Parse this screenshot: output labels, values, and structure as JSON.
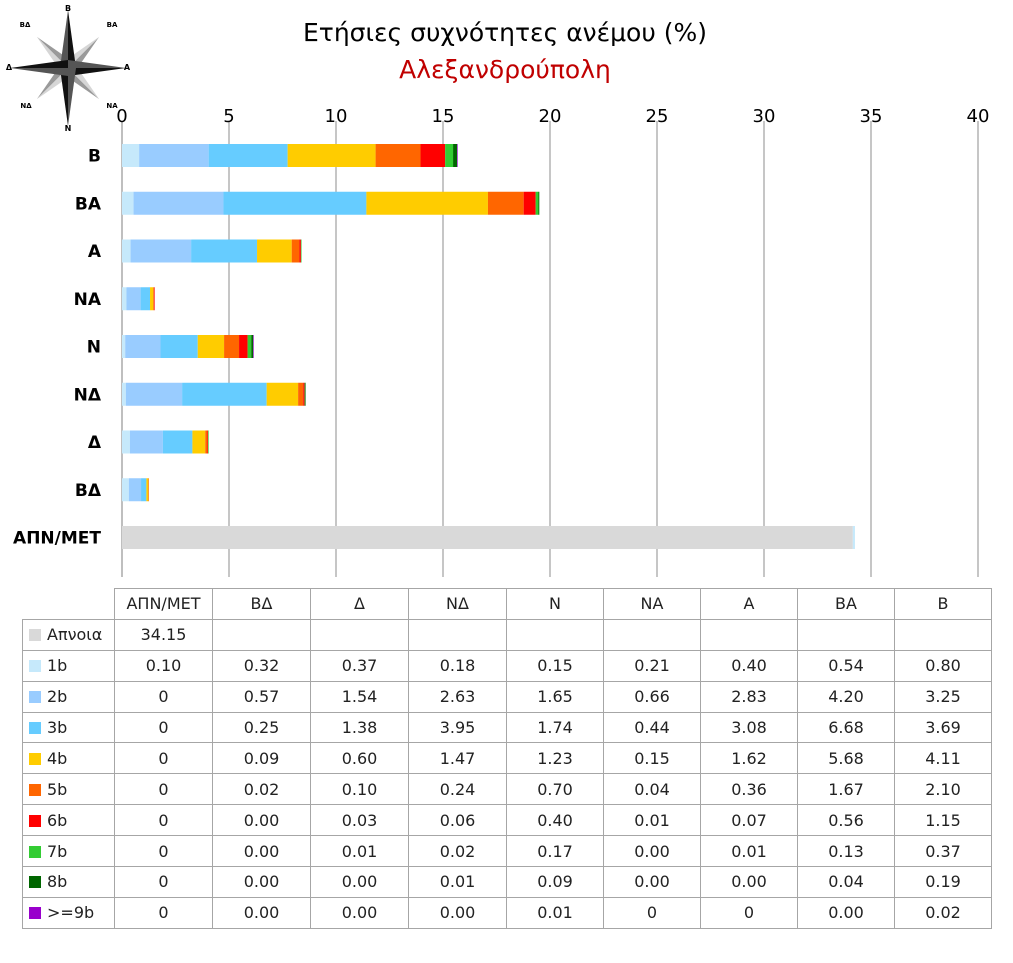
{
  "title": "Ετήσιες συχνότητες ανέμου (%)",
  "subtitle": "Αλεξανδρούπολη",
  "compass": {
    "icon": "wind-rose-icon",
    "labels": {
      "n": "Β",
      "ne": "ΒΑ",
      "e": "Α",
      "se": "ΝΑ",
      "s": "Ν",
      "sw": "ΝΔ",
      "w": "Δ",
      "nw": "ΒΔ"
    }
  },
  "chart_data": {
    "type": "bar",
    "orientation": "horizontal",
    "stacked": true,
    "title": "Ετήσιες συχνότητες ανέμου (%)",
    "subtitle": "Αλεξανδρούπολη",
    "xlim": [
      0,
      40
    ],
    "x_ticks": [
      0,
      5,
      10,
      15,
      20,
      25,
      30,
      35,
      40
    ],
    "x_axis_position": "top",
    "grid": true,
    "legend_placement": "data-table-bottom",
    "chart_categories": [
      "Β",
      "ΒΑ",
      "Α",
      "ΝΑ",
      "Ν",
      "ΝΔ",
      "Δ",
      "ΒΔ",
      "ΑΠΝ/ΜΕΤ"
    ],
    "categories": [
      "ΑΠΝ/ΜΕΤ",
      "ΒΔ",
      "Δ",
      "ΝΔ",
      "Ν",
      "ΝΑ",
      "Α",
      "ΒΑ",
      "Β"
    ],
    "series": [
      {
        "name": "Απνοια",
        "color": "#d9d9d9",
        "values": [
          34.15,
          null,
          null,
          null,
          null,
          null,
          null,
          null,
          null
        ],
        "labels": [
          "34.15",
          "",
          "",
          "",
          "",
          "",
          "",
          "",
          ""
        ]
      },
      {
        "name": "1b",
        "color": "#c6e9fb",
        "values": [
          0.1,
          0.32,
          0.37,
          0.18,
          0.15,
          0.21,
          0.4,
          0.54,
          0.8
        ],
        "labels": [
          "0.10",
          "0.32",
          "0.37",
          "0.18",
          "0.15",
          "0.21",
          "0.40",
          "0.54",
          "0.80"
        ]
      },
      {
        "name": "2b",
        "color": "#99ccff",
        "values": [
          0,
          0.57,
          1.54,
          2.63,
          1.65,
          0.66,
          2.83,
          4.2,
          3.25
        ],
        "labels": [
          "0",
          "0.57",
          "1.54",
          "2.63",
          "1.65",
          "0.66",
          "2.83",
          "4.20",
          "3.25"
        ]
      },
      {
        "name": "3b",
        "color": "#66ccff",
        "values": [
          0,
          0.25,
          1.38,
          3.95,
          1.74,
          0.44,
          3.08,
          6.68,
          3.69
        ],
        "labels": [
          "0",
          "0.25",
          "1.38",
          "3.95",
          "1.74",
          "0.44",
          "3.08",
          "6.68",
          "3.69"
        ]
      },
      {
        "name": "4b",
        "color": "#ffcc00",
        "values": [
          0,
          0.09,
          0.6,
          1.47,
          1.23,
          0.15,
          1.62,
          5.68,
          4.11
        ],
        "labels": [
          "0",
          "0.09",
          "0.60",
          "1.47",
          "1.23",
          "0.15",
          "1.62",
          "5.68",
          "4.11"
        ]
      },
      {
        "name": "5b",
        "color": "#ff6600",
        "values": [
          0,
          0.02,
          0.1,
          0.24,
          0.7,
          0.04,
          0.36,
          1.67,
          2.1
        ],
        "labels": [
          "0",
          "0.02",
          "0.10",
          "0.24",
          "0.70",
          "0.04",
          "0.36",
          "1.67",
          "2.10"
        ]
      },
      {
        "name": "6b",
        "color": "#ff0000",
        "values": [
          0,
          0.0,
          0.03,
          0.06,
          0.4,
          0.01,
          0.07,
          0.56,
          1.15
        ],
        "labels": [
          "0",
          "0.00",
          "0.03",
          "0.06",
          "0.40",
          "0.01",
          "0.07",
          "0.56",
          "1.15"
        ]
      },
      {
        "name": "7b",
        "color": "#33cc33",
        "values": [
          0,
          0.0,
          0.01,
          0.02,
          0.17,
          0.0,
          0.01,
          0.13,
          0.37
        ],
        "labels": [
          "0",
          "0.00",
          "0.01",
          "0.02",
          "0.17",
          "0.00",
          "0.01",
          "0.13",
          "0.37"
        ]
      },
      {
        "name": "8b",
        "color": "#006600",
        "values": [
          0,
          0.0,
          0.0,
          0.01,
          0.09,
          0.0,
          0.0,
          0.04,
          0.19
        ],
        "labels": [
          "0",
          "0.00",
          "0.00",
          "0.01",
          "0.09",
          "0.00",
          "0.00",
          "0.04",
          "0.19"
        ]
      },
      {
        "name": ">=9b",
        "color": "#9900cc",
        "values": [
          0,
          0.0,
          0.0,
          0.0,
          0.01,
          0,
          0,
          0.0,
          0.02
        ],
        "labels": [
          "0",
          "0.00",
          "0.00",
          "0.00",
          "0.01",
          "0",
          "0",
          "0.00",
          "0.02"
        ]
      }
    ]
  }
}
